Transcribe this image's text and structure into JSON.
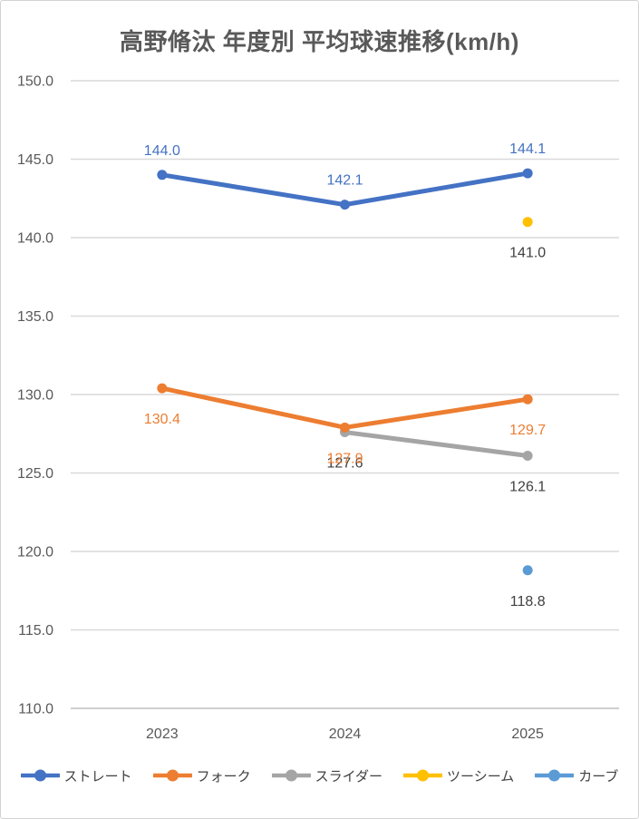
{
  "chart_data": {
    "type": "line",
    "title": "高野脩汰 年度別 平均球速推移(km/h)",
    "categories": [
      "2023",
      "2024",
      "2025"
    ],
    "series": [
      {
        "name": "ストレート",
        "values": [
          144.0,
          142.1,
          144.1
        ],
        "color": "#4472C4",
        "label_color": "#4472C4",
        "label_position": "above"
      },
      {
        "name": "フォーク",
        "values": [
          130.4,
          127.9,
          129.7
        ],
        "color": "#ED7D31",
        "label_color": "#ED7D31",
        "label_position": "below"
      },
      {
        "name": "スライダー",
        "values": [
          null,
          127.6,
          126.1
        ],
        "color": "#A5A5A5",
        "label_color": "#404040",
        "label_position": "below"
      },
      {
        "name": "ツーシーム",
        "values": [
          null,
          null,
          141.0
        ],
        "color": "#FFC000",
        "label_color": "#404040",
        "label_position": "below"
      },
      {
        "name": "カーブ",
        "values": [
          null,
          null,
          118.8
        ],
        "color": "#5B9BD5",
        "label_color": "#404040",
        "label_position": "below"
      }
    ],
    "ylim": [
      110.0,
      150.0
    ],
    "ytick_step": 5.0,
    "y_tick_labels": [
      "150.0",
      "145.0",
      "140.0",
      "135.0",
      "130.0",
      "125.0",
      "120.0",
      "115.0",
      "110.0"
    ],
    "grid": true,
    "legend_position": "bottom",
    "colors": {
      "title_text": "#595959",
      "axis_text": "#595959",
      "data_label_neutral": "#404040",
      "gridline": "#D9D9D9",
      "axis_line": "#BFBFBF",
      "background": "#FFFFFF",
      "border": "#D2D2D2"
    }
  }
}
